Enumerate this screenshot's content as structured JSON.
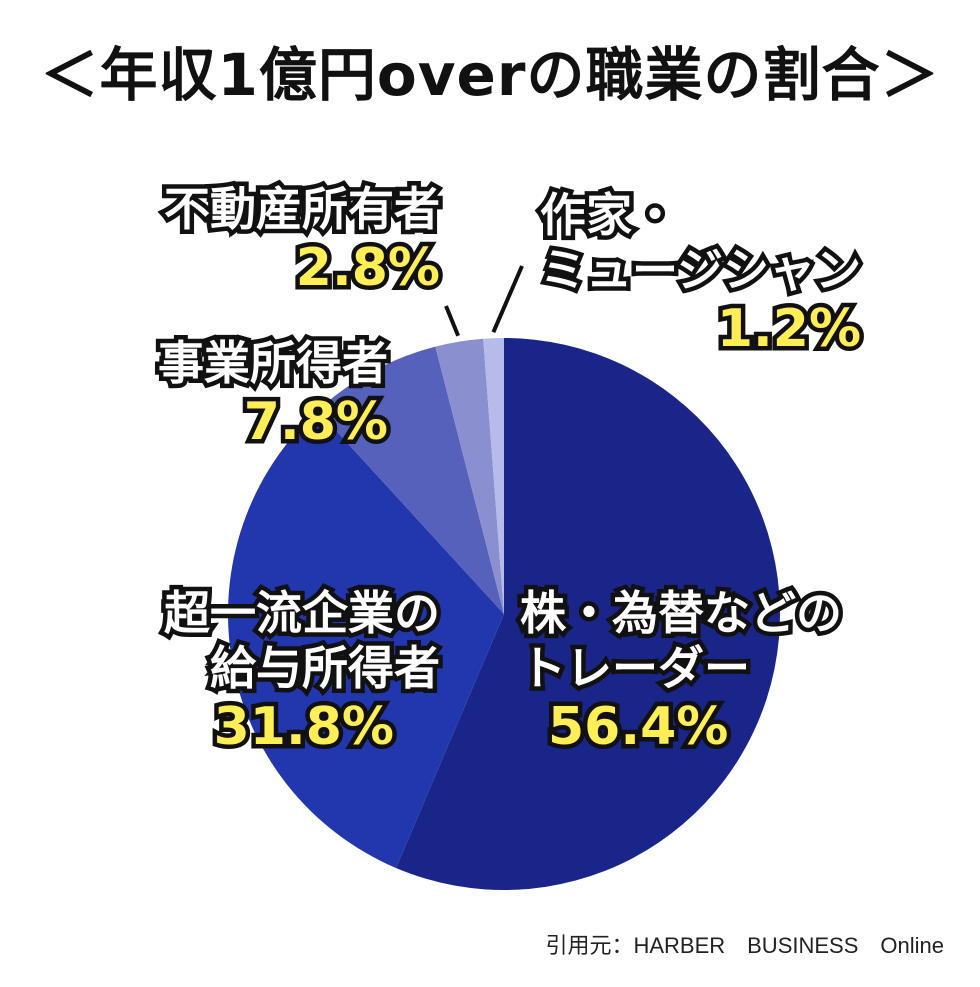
{
  "title": "＜年収1億円overの職業の割合＞",
  "chart_data": {
    "type": "pie",
    "title": "＜年収1億円overの職業の割合＞",
    "slices": [
      {
        "label": "株・為替などのトレーダー",
        "label_lines": [
          "株・為替などの",
          "トレーダー"
        ],
        "value": 56.4,
        "value_label": "56.4%",
        "color": "#1a2589"
      },
      {
        "label": "超一流企業の給与所得者",
        "label_lines": [
          "超一流企業の",
          "給与所得者"
        ],
        "value": 31.8,
        "value_label": "31.8%",
        "color": "#2237ae"
      },
      {
        "label": "事業所得者",
        "label_lines": [
          "事業所得者"
        ],
        "value": 7.8,
        "value_label": "7.8%",
        "color": "#5661bc"
      },
      {
        "label": "不動産所有者",
        "label_lines": [
          "不動産所有者"
        ],
        "value": 2.8,
        "value_label": "2.8%",
        "color": "#8a8fd0"
      },
      {
        "label": "作家・ミュージシャン",
        "label_lines": [
          "作家・",
          "ミュージシャン"
        ],
        "value": 1.2,
        "value_label": "1.2%",
        "color": "#b6bbe9"
      }
    ],
    "start": "12 o'clock",
    "direction": "clockwise"
  },
  "source": "引用元：HARBER　BUSINESS　Online"
}
